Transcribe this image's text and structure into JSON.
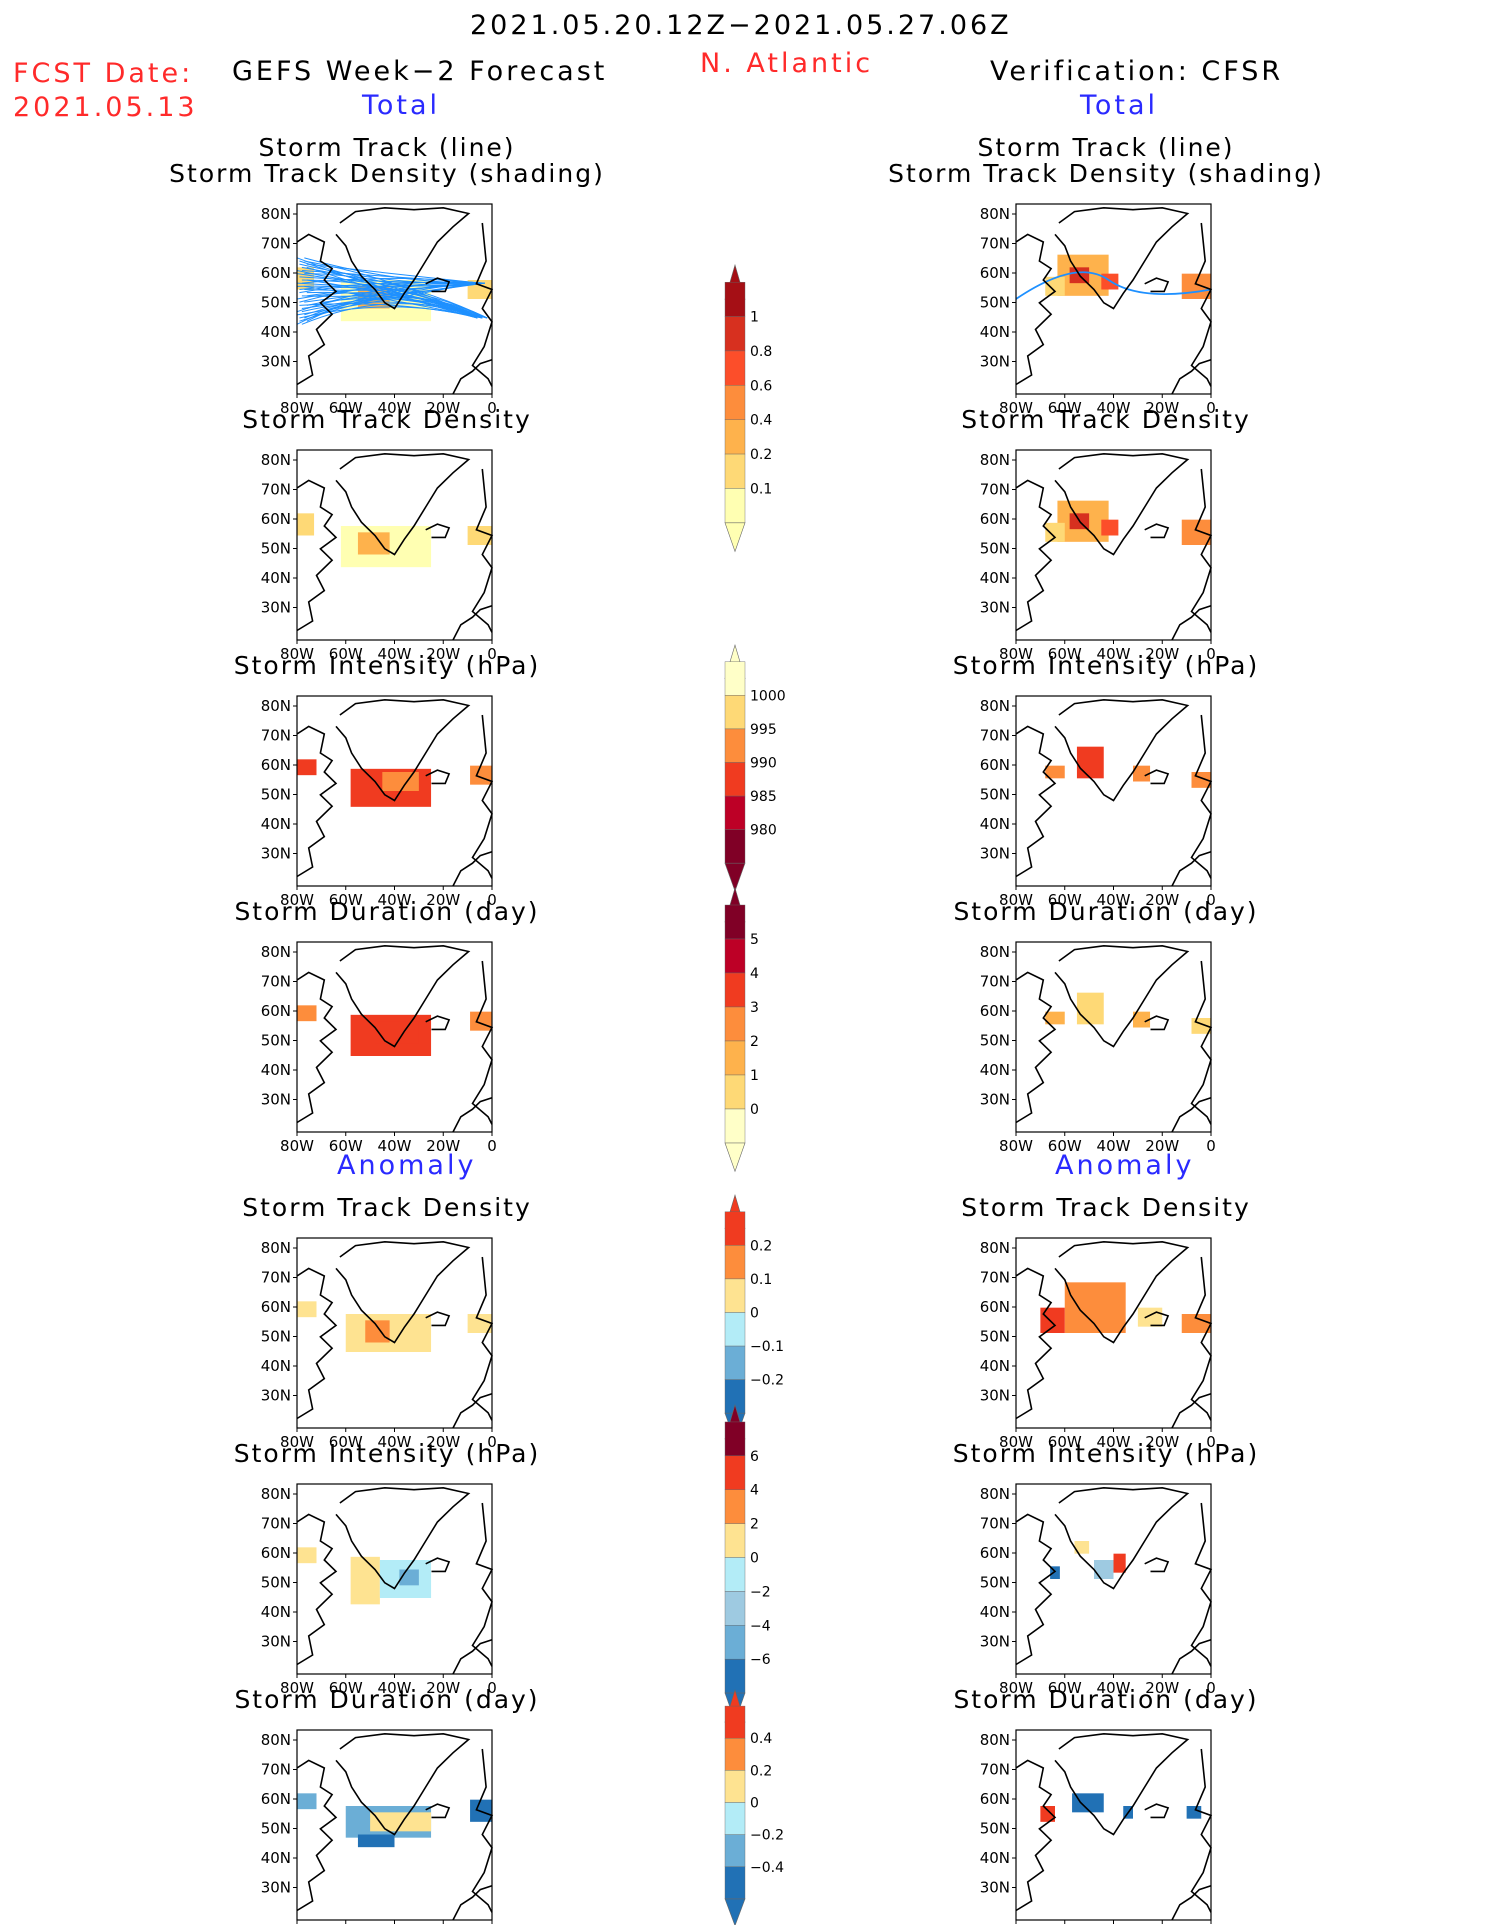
{
  "header": {
    "date_range": "2021.05.20.12Z−2021.05.27.06Z",
    "region": "N. Atlantic",
    "fcst_date_label": "FCST Date:",
    "fcst_date_value": "2021.05.13",
    "left_title": "GEFS Week−2 Forecast",
    "right_title": "Verification: CFSR",
    "left_subtitle": "Total",
    "right_subtitle": "Total"
  },
  "sections": {
    "left_anomaly": "Anomaly",
    "right_anomaly": "Anomaly"
  },
  "axes": {
    "lat_labels": [
      "80N",
      "70N",
      "60N",
      "50N",
      "40N",
      "30N"
    ],
    "lon_labels": [
      "80W",
      "60W",
      "40W",
      "20W",
      "0"
    ]
  },
  "panels": {
    "left": [
      {
        "title_line1": "Storm Track (line)",
        "title_line2": "Storm Track Density (shading)",
        "field": "tracks"
      },
      {
        "title_line1": "Storm Track Density",
        "field": "density"
      },
      {
        "title_line1": "Storm Intensity (hPa)",
        "field": "intensity"
      },
      {
        "title_line1": "Storm Duration (day)",
        "field": "duration"
      },
      {
        "title_line1": "Storm Track Density",
        "field": "density_anom"
      },
      {
        "title_line1": "Storm Intensity (hPa)",
        "field": "intensity_anom"
      },
      {
        "title_line1": "Storm Duration (day)",
        "field": "duration_anom"
      }
    ],
    "right": [
      {
        "title_line1": "Storm Track (line)",
        "title_line2": "Storm Track Density (shading)",
        "field": "tracks"
      },
      {
        "title_line1": "Storm Track Density",
        "field": "density"
      },
      {
        "title_line1": "Storm Intensity (hPa)",
        "field": "intensity"
      },
      {
        "title_line1": "Storm Duration (day)",
        "field": "duration"
      },
      {
        "title_line1": "Storm Track Density",
        "field": "density_anom"
      },
      {
        "title_line1": "Storm Intensity (hPa)",
        "field": "intensity_anom"
      },
      {
        "title_line1": "Storm Duration (day)",
        "field": "duration_anom"
      }
    ]
  },
  "colorbars": [
    {
      "name": "density",
      "labels": [
        "1",
        "0.8",
        "0.6",
        "0.4",
        "0.2",
        "0.1"
      ],
      "colors": [
        "#a50f15",
        "#d7301f",
        "#fc4e2a",
        "#fd8d3c",
        "#feb24c",
        "#fed976",
        "#ffffb2"
      ]
    },
    {
      "name": "intensity",
      "labels": [
        "1000",
        "995",
        "990",
        "985",
        "980"
      ],
      "colors": [
        "#ffffc8",
        "#fed976",
        "#fd8d3c",
        "#f03b20",
        "#bd0026",
        "#800026"
      ]
    },
    {
      "name": "duration",
      "labels": [
        "5",
        "4",
        "3",
        "2",
        "1",
        "0"
      ],
      "colors": [
        "#800026",
        "#bd0026",
        "#f03b20",
        "#fd8d3c",
        "#feb24c",
        "#fed976",
        "#ffffc8"
      ]
    },
    {
      "name": "density_anom",
      "labels": [
        "0.2",
        "0.1",
        "0",
        "−0.1",
        "−0.2"
      ],
      "colors": [
        "#f03b20",
        "#fd8d3c",
        "#fee391",
        "#b3ecf7",
        "#6baed6",
        "#2171b5"
      ]
    },
    {
      "name": "intensity_anom",
      "labels": [
        "6",
        "4",
        "2",
        "0",
        "−2",
        "−4",
        "−6"
      ],
      "colors": [
        "#800026",
        "#f03b20",
        "#fd8d3c",
        "#fee391",
        "#b3ecf7",
        "#9ecae1",
        "#6baed6",
        "#2171b5"
      ]
    },
    {
      "name": "duration_anom",
      "labels": [
        "0.4",
        "0.2",
        "0",
        "−0.2",
        "−0.4"
      ],
      "colors": [
        "#f03b20",
        "#fd8d3c",
        "#fee391",
        "#b3ecf7",
        "#6baed6",
        "#2171b5"
      ]
    }
  ],
  "colors": {
    "title_red": "#ff2a2a",
    "title_blue": "#2a2aff",
    "track_line": "#1e90ff"
  }
}
